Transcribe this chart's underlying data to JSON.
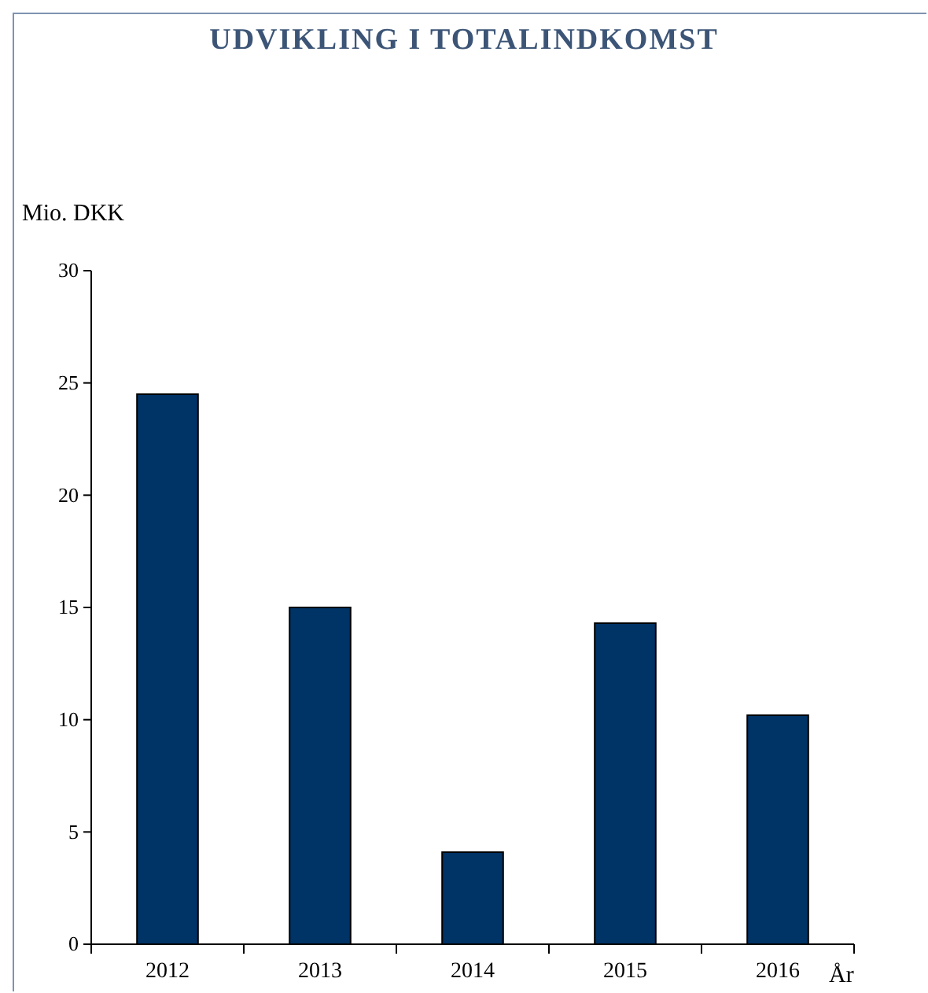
{
  "chart_data": {
    "type": "bar",
    "title": "UDVIKLING I TOTALINDKOMST",
    "ylabel": "Mio. DKK",
    "xlabel": "År",
    "categories": [
      "2012",
      "2013",
      "2014",
      "2015",
      "2016"
    ],
    "values": [
      24.5,
      15.0,
      4.1,
      14.3,
      10.2
    ],
    "color": "#003366",
    "ylim": [
      0,
      30
    ],
    "yticks": [
      0,
      5,
      10,
      15,
      20,
      25,
      30
    ],
    "grid": false
  }
}
